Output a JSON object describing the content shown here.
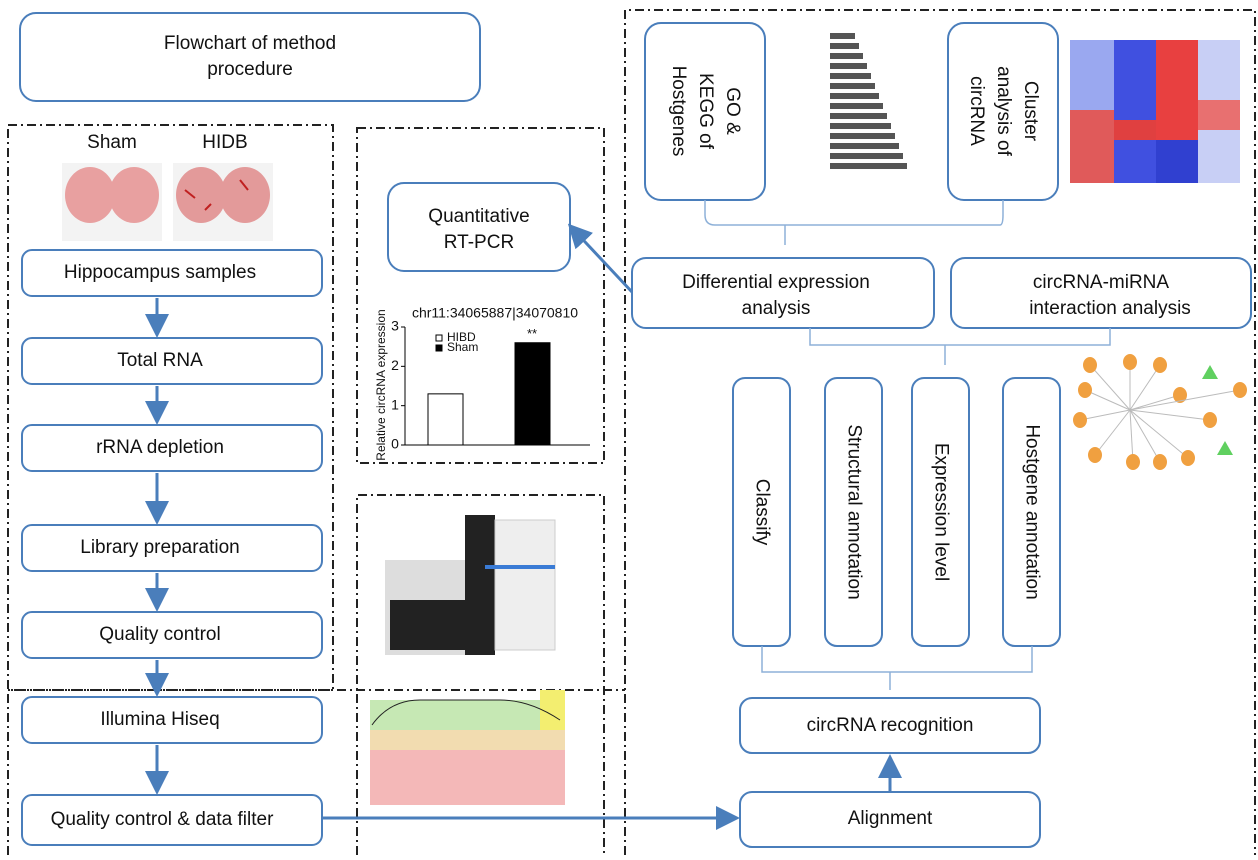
{
  "title": {
    "lines": [
      "Flowchart of method",
      "procedure"
    ]
  },
  "samples": {
    "labels": [
      "Sham",
      "HIDB"
    ]
  },
  "left_steps": [
    "Hippocampus samples",
    "Total RNA",
    "rRNA depletion",
    "Library preparation",
    "Quality control",
    "Illumina Hiseq",
    "Quality control & data filter"
  ],
  "qpcr": {
    "lines": [
      "Quantitative",
      "RT-PCR"
    ]
  },
  "inset_chart": {
    "type": "bar",
    "title": "chr11:34065887|34070810",
    "y_label": "Relative circRNA expression",
    "categories": [
      "HIBD",
      "Sham"
    ],
    "values": [
      1.3,
      2.6
    ],
    "colors": [
      "#ffffff",
      "#000000"
    ],
    "ylim": [
      0,
      3
    ],
    "yticks": [
      0,
      1,
      2,
      3
    ],
    "annotation": "**"
  },
  "go_kegg": {
    "lines": [
      "GO &",
      "KEGG of",
      "Hostgenes"
    ]
  },
  "cluster": {
    "lines": [
      "Cluster",
      "analysis of",
      "circRNA"
    ]
  },
  "differential": {
    "lines": [
      "Differential expression",
      "analysis"
    ]
  },
  "interaction": {
    "lines": [
      "circRNA-miRNA",
      "interaction analysis"
    ]
  },
  "annotations": [
    "Classify",
    "Structural annotation",
    "Expression level",
    "Hostgene annotation"
  ],
  "recognition": "circRNA recognition",
  "alignment": "Alignment"
}
